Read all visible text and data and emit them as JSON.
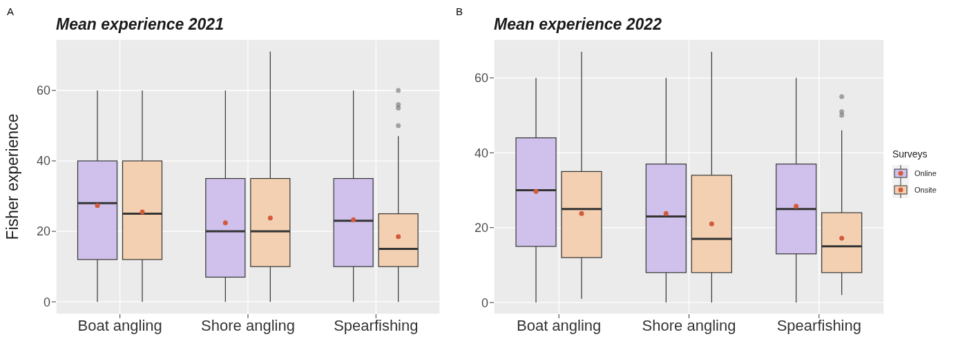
{
  "chart_data": [
    {
      "type": "box",
      "title": "Mean experience 2021",
      "ylabel": "Fisher experience",
      "annotations": [
        "A"
      ],
      "categories": [
        "Boat angling",
        "Shore angling",
        "Spearfishing"
      ],
      "ylim": [
        -3.5,
        74.5
      ],
      "yticks": [
        0,
        20,
        40,
        60
      ],
      "grid": true,
      "legend": false,
      "series": [
        {
          "color": "#cfc0ec",
          "boxes": [
            {
              "low": 0,
              "q1": 12,
              "median": 28,
              "q3": 40,
              "high": 60,
              "mean": 27.3
            },
            {
              "low": 0,
              "q1": 7,
              "median": 20,
              "q3": 35,
              "high": 60,
              "mean": 22.4
            },
            {
              "low": 0,
              "q1": 10,
              "median": 23,
              "q3": 35,
              "high": 60,
              "mean": 23.3
            }
          ]
        },
        {
          "color": "#f3d0b1",
          "boxes": [
            {
              "low": 0,
              "q1": 12,
              "median": 25,
              "q3": 40,
              "high": 60,
              "mean": 25.5
            },
            {
              "low": 0,
              "q1": 10,
              "median": 20,
              "q3": 35,
              "high": 71,
              "mean": 23.8
            },
            {
              "low": 0,
              "q1": 10,
              "median": 15,
              "q3": 25,
              "high": 47,
              "mean": 18.5,
              "outliers": [
                50,
                55,
                56,
                60
              ]
            }
          ]
        }
      ]
    },
    {
      "type": "box",
      "title": "Mean experience 2022",
      "annotations": [
        "B"
      ],
      "categories": [
        "Boat angling",
        "Shore angling",
        "Spearfishing"
      ],
      "ylim": [
        -3.1,
        70.3
      ],
      "yticks": [
        0,
        20,
        40,
        60
      ],
      "grid": true,
      "legend": "right",
      "legend_title": "Surveys",
      "series": [
        {
          "name": "Online",
          "color": "#cfc0ec",
          "boxes": [
            {
              "low": 0,
              "q1": 15,
              "median": 30,
              "q3": 44,
              "high": 60,
              "mean": 29.7
            },
            {
              "low": 0,
              "q1": 8,
              "median": 23,
              "q3": 37,
              "high": 60,
              "mean": 23.8
            },
            {
              "low": 0,
              "q1": 13,
              "median": 25,
              "q3": 37,
              "high": 60,
              "mean": 25.7
            }
          ]
        },
        {
          "name": "Onsite",
          "color": "#f3d0b1",
          "boxes": [
            {
              "low": 1,
              "q1": 12,
              "median": 25,
              "q3": 35,
              "high": 67,
              "mean": 23.8
            },
            {
              "low": 0,
              "q1": 8,
              "median": 17,
              "q3": 34,
              "high": 67,
              "mean": 21
            },
            {
              "low": 2,
              "q1": 8,
              "median": 15,
              "q3": 24,
              "high": 46,
              "mean": 17.2,
              "outliers": [
                50,
                51,
                55
              ]
            }
          ]
        }
      ]
    }
  ]
}
